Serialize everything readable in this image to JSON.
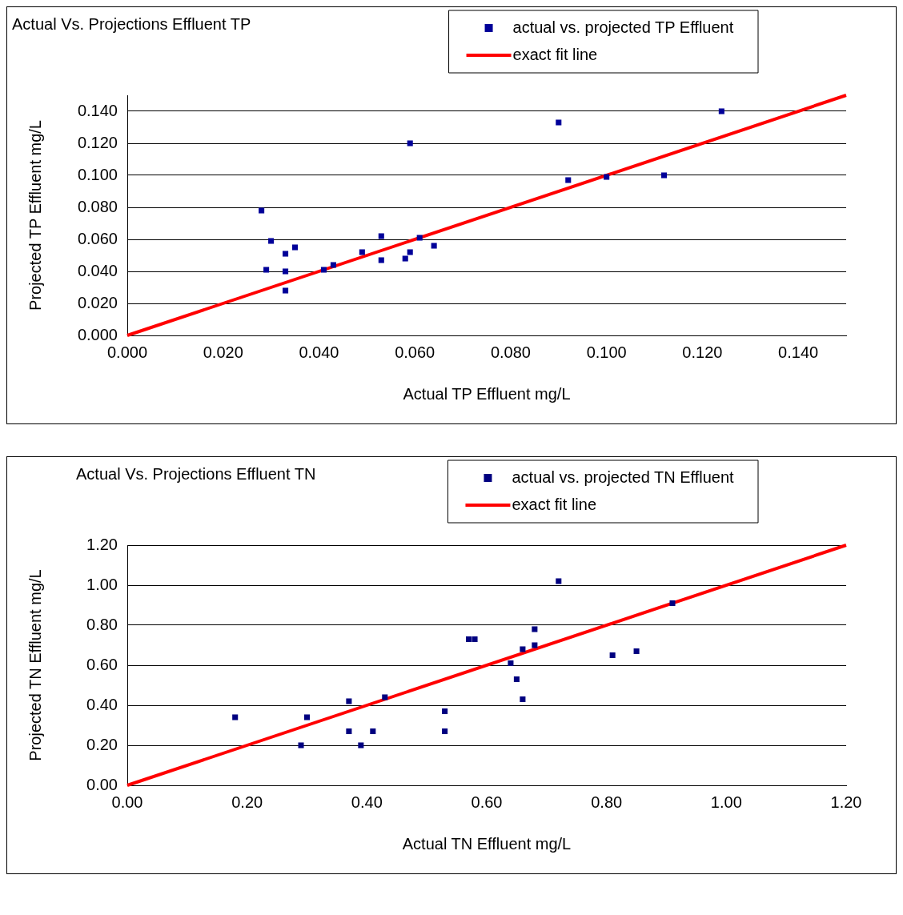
{
  "chart_data": [
    {
      "type": "scatter",
      "title": "Actual Vs. Projections Effluent TP",
      "xlabel": "Actual TP Effluent mg/L",
      "ylabel": "Projected TP Effluent mg/L",
      "xlim": [
        0,
        0.15
      ],
      "ylim": [
        0,
        0.15
      ],
      "xticks": [
        {
          "value": 0,
          "label": "0.000"
        },
        {
          "value": 0.02,
          "label": "0.020"
        },
        {
          "value": 0.04,
          "label": "0.040"
        },
        {
          "value": 0.06,
          "label": "0.060"
        },
        {
          "value": 0.08,
          "label": "0.080"
        },
        {
          "value": 0.1,
          "label": "0.100"
        },
        {
          "value": 0.12,
          "label": "0.120"
        },
        {
          "value": 0.14,
          "label": "0.140"
        }
      ],
      "yticks": [
        {
          "value": 0,
          "label": "0.000"
        },
        {
          "value": 0.02,
          "label": "0.020"
        },
        {
          "value": 0.04,
          "label": "0.040"
        },
        {
          "value": 0.06,
          "label": "0.060"
        },
        {
          "value": 0.08,
          "label": "0.080"
        },
        {
          "value": 0.1,
          "label": "0.100"
        },
        {
          "value": 0.12,
          "label": "0.120"
        },
        {
          "value": 0.14,
          "label": "0.140"
        }
      ],
      "grid": "y",
      "legend": "top right",
      "series": [
        {
          "name": "actual vs. projected TP Effluent",
          "type": "scatter",
          "marker": "square",
          "color": "#000099",
          "x": [
            0.028,
            0.029,
            0.03,
            0.033,
            0.033,
            0.033,
            0.035,
            0.041,
            0.043,
            0.049,
            0.053,
            0.053,
            0.059,
            0.059,
            0.058,
            0.061,
            0.064,
            0.09,
            0.092,
            0.1,
            0.112,
            0.124
          ],
          "values": [
            0.078,
            0.041,
            0.059,
            0.04,
            0.028,
            0.051,
            0.055,
            0.041,
            0.044,
            0.052,
            0.062,
            0.047,
            0.12,
            0.052,
            0.048,
            0.061,
            0.056,
            0.133,
            0.097,
            0.099,
            0.1,
            0.14
          ]
        },
        {
          "name": "exact fit line",
          "type": "line",
          "marker": "none",
          "color": "#ff0000",
          "x": [
            0,
            0.15
          ],
          "values": [
            0,
            0.15
          ]
        }
      ]
    },
    {
      "type": "scatter",
      "title": "Actual Vs. Projections Effluent TN",
      "xlabel": "Actual TN Effluent mg/L",
      "ylabel": "Projected TN Effluent mg/L",
      "xlim": [
        0,
        1.2
      ],
      "ylim": [
        0,
        1.2
      ],
      "xticks": [
        {
          "value": 0,
          "label": "0.00"
        },
        {
          "value": 0.2,
          "label": "0.20"
        },
        {
          "value": 0.4,
          "label": "0.40"
        },
        {
          "value": 0.6,
          "label": "0.60"
        },
        {
          "value": 0.8,
          "label": "0.80"
        },
        {
          "value": 1,
          "label": "1.00"
        },
        {
          "value": 1.2,
          "label": "1.20"
        }
      ],
      "yticks": [
        {
          "value": 0,
          "label": "0.00"
        },
        {
          "value": 0.2,
          "label": "0.20"
        },
        {
          "value": 0.4,
          "label": "0.40"
        },
        {
          "value": 0.6,
          "label": "0.60"
        },
        {
          "value": 0.8,
          "label": "0.80"
        },
        {
          "value": 1,
          "label": "1.00"
        },
        {
          "value": 1.2,
          "label": "1.20"
        }
      ],
      "grid": "y",
      "legend": "top right",
      "series": [
        {
          "name": "actual vs. projected TN Effluent",
          "type": "scatter",
          "marker": "square",
          "color": "#000080",
          "x": [
            0.18,
            0.29,
            0.3,
            0.37,
            0.37,
            0.39,
            0.41,
            0.43,
            0.53,
            0.53,
            0.57,
            0.58,
            0.64,
            0.65,
            0.66,
            0.66,
            0.68,
            0.68,
            0.72,
            0.81,
            0.85,
            0.91
          ],
          "values": [
            0.34,
            0.2,
            0.34,
            0.42,
            0.27,
            0.2,
            0.27,
            0.44,
            0.37,
            0.27,
            0.73,
            0.73,
            0.61,
            0.53,
            0.68,
            0.43,
            0.78,
            0.7,
            1.02,
            0.65,
            0.67,
            0.91
          ]
        },
        {
          "name": "exact fit line",
          "type": "line",
          "marker": "none",
          "color": "#ff0000",
          "x": [
            0,
            1.2
          ],
          "values": [
            0,
            1.2
          ]
        }
      ]
    }
  ]
}
